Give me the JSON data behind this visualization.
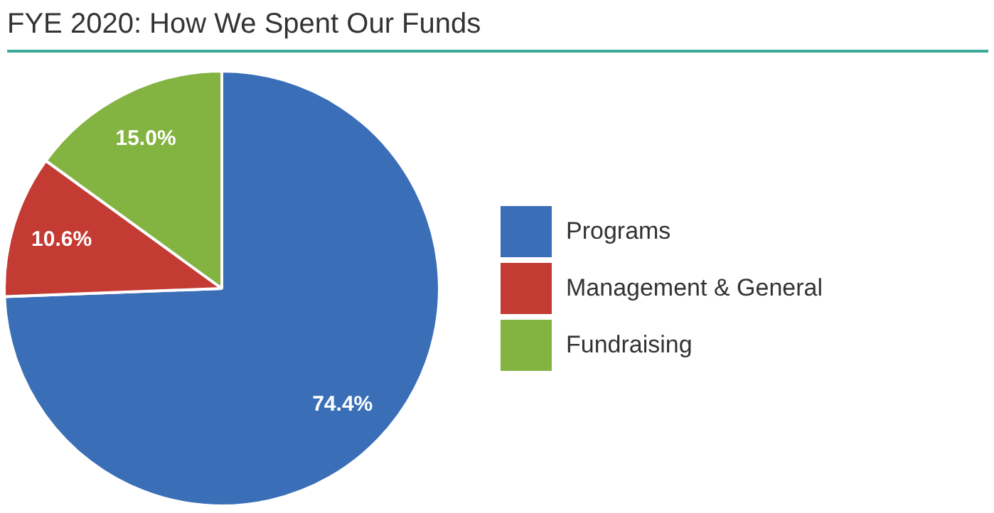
{
  "chart_data": {
    "type": "pie",
    "title": "FYE 2020: How We Spent Our Funds",
    "categories": [
      "Programs",
      "Management & General",
      "Fundraising"
    ],
    "values": [
      74.4,
      10.6,
      15.0
    ],
    "colors": [
      "#3a6fb7",
      "#c43b33",
      "#83b341"
    ],
    "value_labels": [
      "74.4%",
      "10.6%",
      "15.0%"
    ],
    "legend": "right"
  }
}
